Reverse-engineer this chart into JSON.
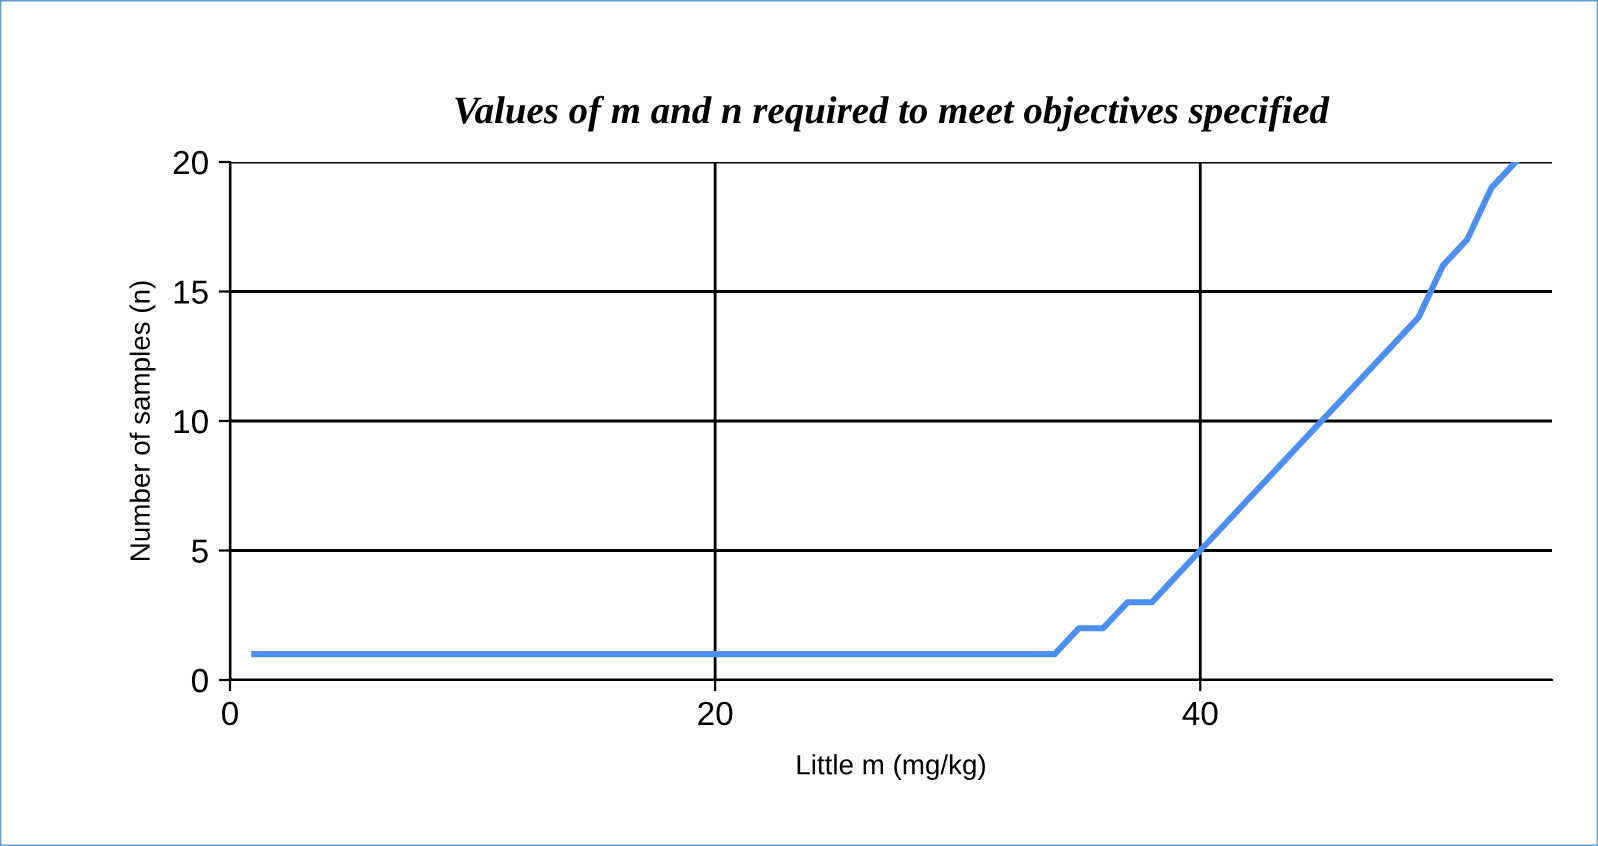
{
  "chart_data": {
    "type": "line",
    "title": "Values of m and n required to meet objectives specified",
    "xlabel": "Little m (mg/kg)",
    "ylabel": "Number of samples (n)",
    "x": [
      1,
      2,
      3,
      4,
      5,
      6,
      7,
      8,
      9,
      10,
      11,
      12,
      13,
      14,
      15,
      16,
      17,
      18,
      19,
      20,
      21,
      22,
      23,
      24,
      25,
      26,
      27,
      28,
      29,
      30,
      31,
      32,
      33,
      34,
      35,
      36,
      37,
      38,
      39,
      40,
      41,
      42,
      43,
      44,
      45,
      46,
      47,
      48,
      49,
      50,
      51,
      52,
      53
    ],
    "series": [
      {
        "color": "#4c8ff0",
        "values": [
          1,
          1,
          1,
          1,
          1,
          1,
          1,
          1,
          1,
          1,
          1,
          1,
          1,
          1,
          1,
          1,
          1,
          1,
          1,
          1,
          1,
          1,
          1,
          1,
          1,
          1,
          1,
          1,
          1,
          1,
          1,
          1,
          1,
          1,
          2,
          2,
          3,
          3,
          4,
          5,
          6,
          7,
          8,
          9,
          10,
          11,
          12,
          13,
          14,
          16,
          17,
          19,
          20
        ]
      }
    ],
    "xlim": [
      0,
      54.5
    ],
    "xticks": [
      0,
      20,
      40
    ],
    "ylim": [
      0,
      20
    ],
    "yticks": [
      0,
      5,
      10,
      15,
      20
    ],
    "grid": true
  }
}
